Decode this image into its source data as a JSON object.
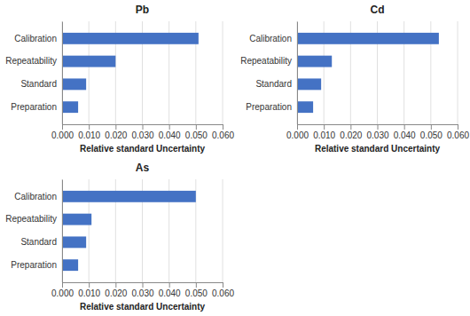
{
  "chart_data": [
    {
      "type": "bar",
      "orientation": "horizontal",
      "title": "Pb",
      "categories": [
        "Calibration",
        "Repeatability",
        "Standard",
        "Preparation"
      ],
      "values": [
        0.051,
        0.02,
        0.009,
        0.006
      ],
      "color": "#4472C4",
      "xlabel": "Relative standard Uncertainty",
      "xlim": [
        0,
        0.06
      ],
      "xticks": [
        {
          "value": 0.0,
          "label": "0.000"
        },
        {
          "value": 0.01,
          "label": "0.010"
        },
        {
          "value": 0.02,
          "label": "0.020"
        },
        {
          "value": 0.03,
          "label": "0.030"
        },
        {
          "value": 0.04,
          "label": "0.040"
        },
        {
          "value": 0.05,
          "label": "0.050"
        },
        {
          "value": 0.06,
          "label": "0.060"
        }
      ],
      "grid": true
    },
    {
      "type": "bar",
      "orientation": "horizontal",
      "title": "Cd",
      "categories": [
        "Calibration",
        "Repeatability",
        "Standard",
        "Preparation"
      ],
      "values": [
        0.053,
        0.013,
        0.009,
        0.006
      ],
      "color": "#4472C4",
      "xlabel": "Relative standard Uncertainty",
      "xlim": [
        0,
        0.06
      ],
      "xticks": [
        {
          "value": 0.0,
          "label": "0.000"
        },
        {
          "value": 0.01,
          "label": "0.010"
        },
        {
          "value": 0.02,
          "label": "0.020"
        },
        {
          "value": 0.03,
          "label": "0.030"
        },
        {
          "value": 0.04,
          "label": "0.040"
        },
        {
          "value": 0.05,
          "label": "0.050"
        },
        {
          "value": 0.06,
          "label": "0.060"
        }
      ],
      "grid": true
    },
    {
      "type": "bar",
      "orientation": "horizontal",
      "title": "As",
      "categories": [
        "Calibration",
        "Repeatability",
        "Standard",
        "Preparation"
      ],
      "values": [
        0.05,
        0.011,
        0.009,
        0.006
      ],
      "color": "#4472C4",
      "xlabel": "Relative standard Uncertainty",
      "xlim": [
        0,
        0.06
      ],
      "xticks": [
        {
          "value": 0.0,
          "label": "0.000"
        },
        {
          "value": 0.01,
          "label": "0.010"
        },
        {
          "value": 0.02,
          "label": "0.020"
        },
        {
          "value": 0.03,
          "label": "0.030"
        },
        {
          "value": 0.04,
          "label": "0.040"
        },
        {
          "value": 0.05,
          "label": "0.050"
        },
        {
          "value": 0.06,
          "label": "0.060"
        }
      ],
      "grid": true
    }
  ]
}
